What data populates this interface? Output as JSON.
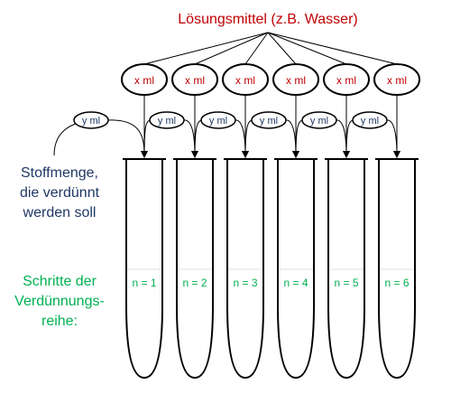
{
  "title": "Lösungsmittel (z.B. Wasser)",
  "solvent_label": "x ml",
  "transfer_label": "y ml",
  "source_label": [
    "Stoffmenge,",
    "die verdünnt",
    "werden soll"
  ],
  "steps_label": [
    "Schritte der",
    "Verdünnungs-",
    "reihe:"
  ],
  "tubes": [
    "n = 1",
    "n = 2",
    "n = 3",
    "n = 4",
    "n = 5",
    "n = 6"
  ],
  "colors": {
    "title": "#c00000",
    "solvent_label": "#c00000",
    "transfer_label": "#1f3864",
    "source_label": "#1f3864",
    "steps_label": "#00b050",
    "tube_label": "#00b050",
    "line": "#000000"
  }
}
